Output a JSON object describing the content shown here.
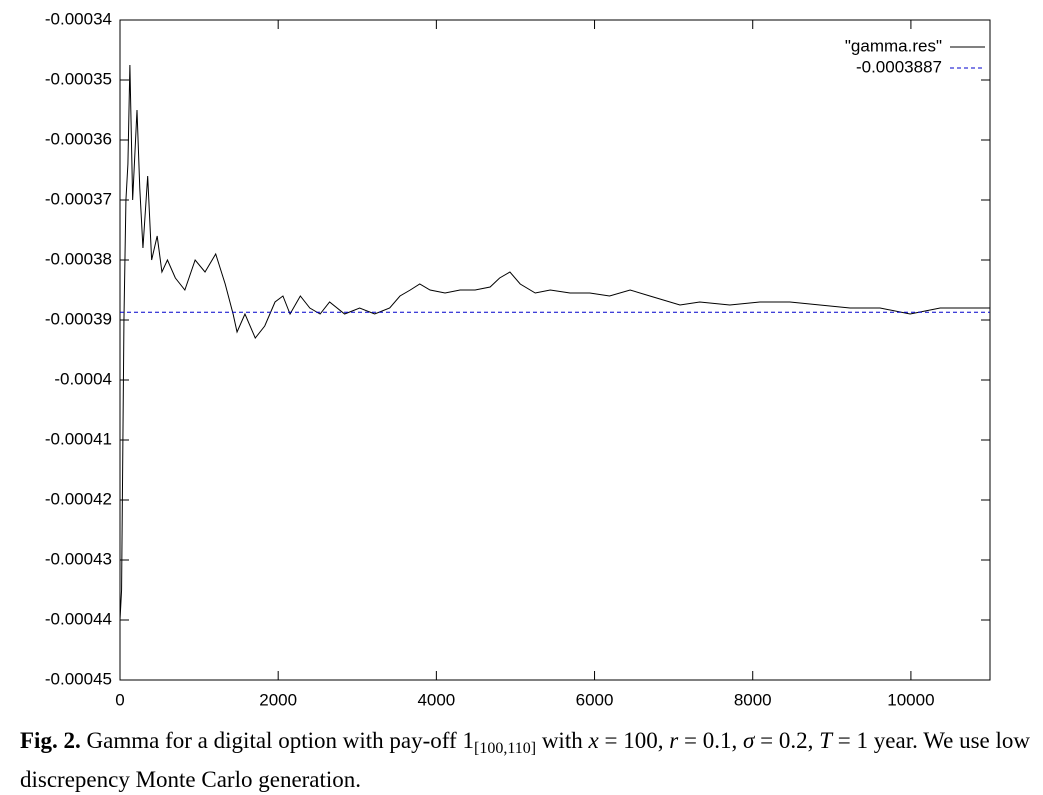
{
  "chart_data": {
    "type": "line",
    "xlim": [
      0,
      11000
    ],
    "xticks": [
      0,
      2000,
      4000,
      6000,
      8000,
      10000
    ],
    "ylim": [
      -0.00045,
      -0.00034
    ],
    "yticks": [
      -0.00045,
      -0.00044,
      -0.00043,
      -0.00042,
      -0.00041,
      -0.0004,
      -0.00039,
      -0.00038,
      -0.00037,
      -0.00036,
      -0.00035,
      -0.00034
    ],
    "grid": false,
    "legend": "top-right",
    "series": [
      {
        "name": "\"gamma.res\"",
        "color": "#000000",
        "dash": false,
        "x": [
          0,
          20,
          50,
          75,
          100,
          125,
          160,
          215,
          250,
          290,
          350,
          400,
          470,
          530,
          600,
          700,
          820,
          950,
          1075,
          1210,
          1330,
          1430,
          1480,
          1580,
          1710,
          1830,
          1960,
          2060,
          2150,
          2280,
          2400,
          2530,
          2650,
          2840,
          3030,
          3220,
          3410,
          3540,
          3670,
          3790,
          3920,
          4110,
          4300,
          4490,
          4680,
          4800,
          4930,
          5060,
          5250,
          5440,
          5690,
          5940,
          6190,
          6450,
          6700,
          7080,
          7330,
          7710,
          8090,
          8470,
          8850,
          9230,
          9610,
          9990,
          10370,
          10750,
          11000
        ],
        "values": [
          -0.00044,
          -0.000435,
          -0.00039,
          -0.00037,
          -0.000364,
          -0.0003475,
          -0.00037,
          -0.000355,
          -0.000368,
          -0.000378,
          -0.000366,
          -0.00038,
          -0.000376,
          -0.000382,
          -0.00038,
          -0.000383,
          -0.000385,
          -0.00038,
          -0.000382,
          -0.000379,
          -0.000384,
          -0.000389,
          -0.000392,
          -0.000389,
          -0.000393,
          -0.000391,
          -0.000387,
          -0.000386,
          -0.000389,
          -0.000386,
          -0.000388,
          -0.000389,
          -0.000387,
          -0.000389,
          -0.000388,
          -0.000389,
          -0.000388,
          -0.000386,
          -0.000385,
          -0.000384,
          -0.000385,
          -0.0003855,
          -0.000385,
          -0.000385,
          -0.0003845,
          -0.000383,
          -0.000382,
          -0.000384,
          -0.0003855,
          -0.000385,
          -0.0003855,
          -0.0003855,
          -0.000386,
          -0.000385,
          -0.000386,
          -0.0003875,
          -0.000387,
          -0.0003875,
          -0.000387,
          -0.000387,
          -0.0003875,
          -0.000388,
          -0.000388,
          -0.000389,
          -0.000388,
          -0.000388,
          -0.000388
        ]
      },
      {
        "name": "-0.0003887",
        "color": "#0000cc",
        "dash": true,
        "x": [
          0,
          11000
        ],
        "values": [
          -0.0003887,
          -0.0003887
        ]
      }
    ]
  },
  "caption": {
    "label": "Fig. 2.",
    "segments": [
      {
        "text": "Gamma for a digital option with pay-off 1"
      },
      {
        "text": "[100,110]",
        "style": "sub"
      },
      {
        "text": " with "
      },
      {
        "text": "x",
        "style": "italic"
      },
      {
        "text": " = 100, "
      },
      {
        "text": "r",
        "style": "italic"
      },
      {
        "text": " = 0.1, "
      },
      {
        "text": "σ",
        "style": "italic"
      },
      {
        "text": " = 0.2, "
      },
      {
        "text": "T",
        "style": "italic"
      },
      {
        "text": " = 1 year. We use low discrepency Monte Carlo generation."
      }
    ]
  }
}
